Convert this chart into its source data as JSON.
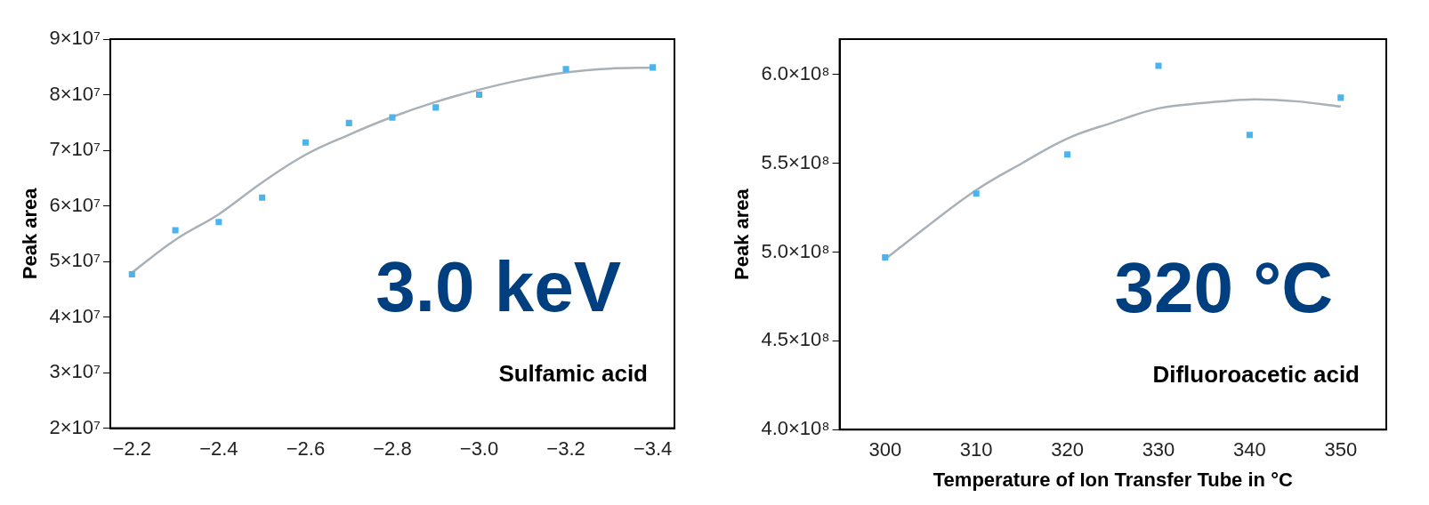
{
  "chart_data": [
    {
      "type": "scatter",
      "ylabel": "Peak area",
      "xlim": [
        -2.15,
        -3.45
      ],
      "xticks": [
        {
          "value": -2.2,
          "label": "−2.2"
        },
        {
          "value": -2.4,
          "label": "−2.4"
        },
        {
          "value": -2.6,
          "label": "−2.6"
        },
        {
          "value": -2.8,
          "label": "−2.8"
        },
        {
          "value": -3.0,
          "label": "−3.0"
        },
        {
          "value": -3.2,
          "label": "−3.2"
        },
        {
          "value": -3.4,
          "label": "−3.4"
        }
      ],
      "ylim": [
        20000000,
        90000000
      ],
      "yticks": [
        {
          "value": 20000000,
          "label": "2×10⁷"
        },
        {
          "value": 30000000,
          "label": "3×10⁷"
        },
        {
          "value": 40000000,
          "label": "4×10⁷"
        },
        {
          "value": 50000000,
          "label": "5×10⁷"
        },
        {
          "value": 60000000,
          "label": "6×10⁷"
        },
        {
          "value": 70000000,
          "label": "7×10⁷"
        },
        {
          "value": 80000000,
          "label": "8×10⁷"
        },
        {
          "value": 90000000,
          "label": "9×10⁷"
        }
      ],
      "grid": false,
      "legend": false,
      "annotations": [
        "3.0 keV",
        "Sulfamic acid"
      ],
      "series": [
        {
          "type": "scatter",
          "marker": "square",
          "color": "#4db3ec",
          "x": [
            -2.2,
            -2.3,
            -2.4,
            -2.5,
            -2.6,
            -2.7,
            -2.8,
            -2.9,
            -3.0,
            -3.2,
            -3.4
          ],
          "values": [
            47700000,
            55600000,
            57100000,
            61500000,
            71400000,
            74900000,
            75900000,
            77700000,
            80000000,
            84600000,
            84900000
          ]
        },
        {
          "type": "line",
          "marker": "none",
          "color": "#a9b1b8",
          "x": [
            -2.2,
            -2.3,
            -2.4,
            -2.5,
            -2.6,
            -2.7,
            -2.8,
            -2.9,
            -3.0,
            -3.1,
            -3.2,
            -3.3,
            -3.4
          ],
          "values": [
            48000000,
            53900000,
            58500000,
            64200000,
            69200000,
            72800000,
            76000000,
            78700000,
            80900000,
            82700000,
            84000000,
            84700000,
            84900000
          ]
        }
      ]
    },
    {
      "type": "scatter",
      "ylabel": "Peak area",
      "xlabel": "Temperature of Ion Transfer Tube in °C",
      "xlim": [
        295,
        355
      ],
      "xticks": [
        300,
        310,
        320,
        330,
        340,
        350
      ],
      "ylim": [
        400000000,
        620000000
      ],
      "yticks": [
        {
          "value": 400000000,
          "label": "4.0×10⁸"
        },
        {
          "value": 450000000,
          "label": "4.5×10⁸"
        },
        {
          "value": 500000000,
          "label": "5.0×10⁸"
        },
        {
          "value": 550000000,
          "label": "5.5×10⁸"
        },
        {
          "value": 600000000,
          "label": "6.0×10⁸"
        }
      ],
      "grid": false,
      "legend": false,
      "annotations": [
        "320 °C",
        "Difluoroacetic acid"
      ],
      "series": [
        {
          "type": "scatter",
          "marker": "square",
          "color": "#4db3ec",
          "x": [
            300,
            310,
            320,
            330,
            340,
            350
          ],
          "values": [
            497000000,
            533000000,
            555000000,
            605000000,
            566000000,
            587000000
          ]
        },
        {
          "type": "line",
          "marker": "none",
          "color": "#a9b1b8",
          "x": [
            300,
            305,
            310,
            315,
            320,
            325,
            330,
            335,
            340,
            345,
            350
          ],
          "values": [
            496000000,
            516000000,
            535000000,
            550000000,
            564000000,
            573000000,
            581000000,
            584000000,
            586000000,
            585000000,
            582000000
          ]
        }
      ]
    }
  ]
}
